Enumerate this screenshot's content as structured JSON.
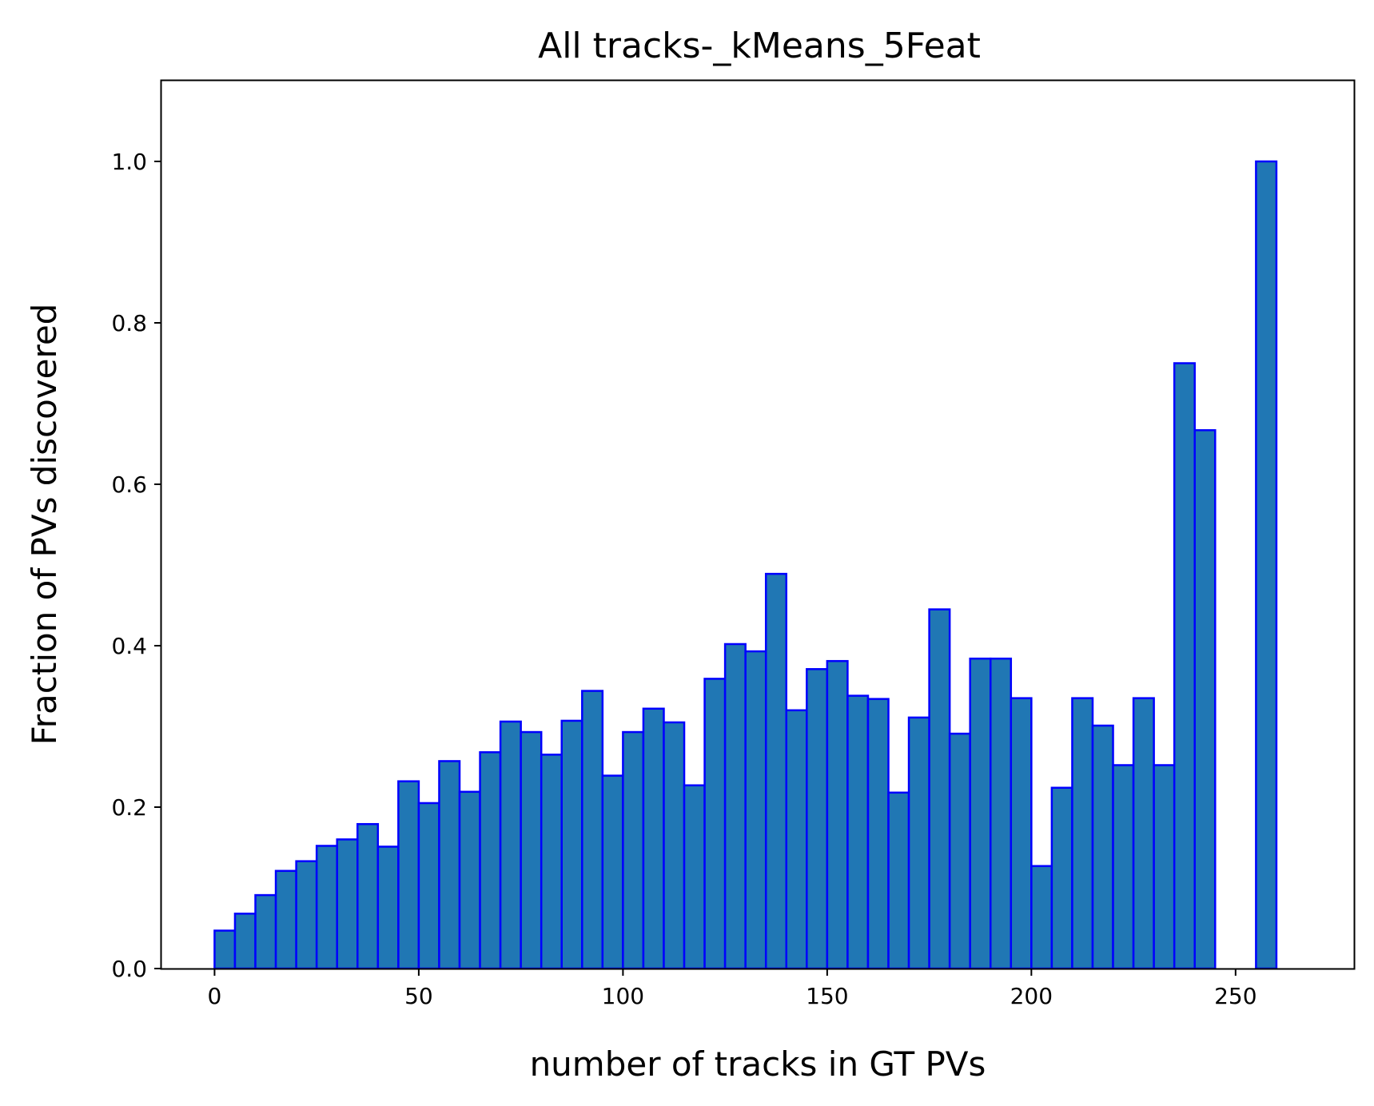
{
  "chart_data": {
    "type": "bar",
    "title": "All tracks-_kMeans_5Feat",
    "xlabel": "number of tracks in GT PVs",
    "ylabel": "Fraction of PVs discovered",
    "xlim": [
      -13,
      279
    ],
    "ylim": [
      0,
      1.1
    ],
    "xticks": [
      0,
      50,
      100,
      150,
      200,
      250
    ],
    "xtick_labels": [
      "0",
      "50",
      "100",
      "150",
      "200",
      "250"
    ],
    "yticks": [
      0.0,
      0.2,
      0.4,
      0.6,
      0.8,
      1.0
    ],
    "ytick_labels": [
      "0.0",
      "0.2",
      "0.4",
      "0.6",
      "0.8",
      "1.0"
    ],
    "bin_width": 5,
    "bin_start": 0,
    "values": [
      0.047,
      0.068,
      0.091,
      0.121,
      0.133,
      0.152,
      0.16,
      0.179,
      0.151,
      0.232,
      0.205,
      0.257,
      0.219,
      0.268,
      0.306,
      0.293,
      0.265,
      0.307,
      0.344,
      0.239,
      0.293,
      0.322,
      0.305,
      0.227,
      0.359,
      0.402,
      0.393,
      0.489,
      0.32,
      0.371,
      0.381,
      0.338,
      0.334,
      0.218,
      0.311,
      0.445,
      0.291,
      0.384,
      0.384,
      0.335,
      0.127,
      0.224,
      0.335,
      0.301,
      0.252,
      0.335,
      0.252,
      0.75,
      0.667,
      0.0,
      0.0,
      1.0,
      0.0
    ],
    "grid": false,
    "colors": {
      "bar_fill": "#2077b4",
      "bar_edge": "#0000ff",
      "axis": "#000000"
    }
  }
}
